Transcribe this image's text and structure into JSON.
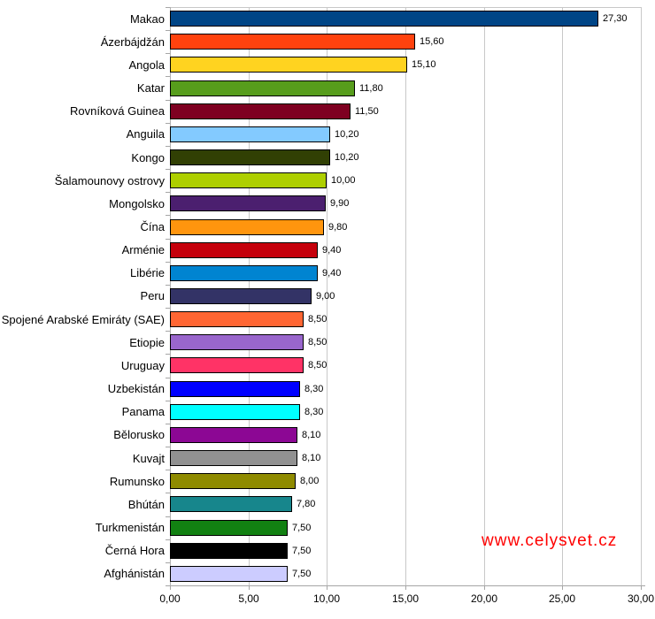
{
  "chart_data": {
    "type": "bar",
    "orientation": "horizontal",
    "title": "",
    "xlabel": "",
    "ylabel": "",
    "xlim": [
      0,
      30
    ],
    "grid": true,
    "legend": "none",
    "x_ticks": [
      {
        "v": 0,
        "label": "0,00"
      },
      {
        "v": 5,
        "label": "5,00"
      },
      {
        "v": 10,
        "label": "10,00"
      },
      {
        "v": 15,
        "label": "15,00"
      },
      {
        "v": 20,
        "label": "20,00"
      },
      {
        "v": 25,
        "label": "25,00"
      },
      {
        "v": 30,
        "label": "30,00"
      }
    ],
    "categories": [
      "Makao",
      "Ázerbájdžán",
      "Angola",
      "Katar",
      "Rovníková Guinea",
      "Anguila",
      "Kongo",
      "Šalamounovy ostrovy",
      "Mongolsko",
      "Čína",
      "Arménie",
      "Libérie",
      "Peru",
      "Spojené Arabské Emiráty (SAE)",
      "Etiopie",
      "Uruguay",
      "Uzbekistán",
      "Panama",
      "Bělorusko",
      "Kuvajt",
      "Rumunsko",
      "Bhútán",
      "Turkmenistán",
      "Černá Hora",
      "Afghánistán"
    ],
    "values": [
      27.3,
      15.6,
      15.1,
      11.8,
      11.5,
      10.2,
      10.2,
      10.0,
      9.9,
      9.8,
      9.4,
      9.4,
      9.0,
      8.5,
      8.5,
      8.5,
      8.3,
      8.3,
      8.1,
      8.1,
      8.0,
      7.8,
      7.5,
      7.5,
      7.5
    ],
    "value_labels": [
      "27,30",
      "15,60",
      "15,10",
      "11,80",
      "11,50",
      "10,20",
      "10,20",
      "10,00",
      "9,90",
      "9,80",
      "9,40",
      "9,40",
      "9,00",
      "8,50",
      "8,50",
      "8,50",
      "8,30",
      "8,30",
      "8,10",
      "8,10",
      "8,00",
      "7,80",
      "7,50",
      "7,50",
      "7,50"
    ],
    "bar_colors": [
      "#004586",
      "#FF420E",
      "#FFD320",
      "#579D1C",
      "#7E0021",
      "#83CAFF",
      "#314004",
      "#AECF00",
      "#4B1F6F",
      "#FF950E",
      "#C5000B",
      "#0084D1",
      "#333366",
      "#FF6633",
      "#9966CC",
      "#FF3366",
      "#0000FF",
      "#00FFFF",
      "#8C0794",
      "#919191",
      "#8F8B00",
      "#17868C",
      "#128112",
      "#000000",
      "#CCCCFF"
    ],
    "bar_border_color": "#000000",
    "gridline_color": "#c8c8c8",
    "axis_color": "#a6a6a6"
  },
  "watermark": {
    "text": "www.celysvet.cz",
    "color": "#ff0000"
  }
}
